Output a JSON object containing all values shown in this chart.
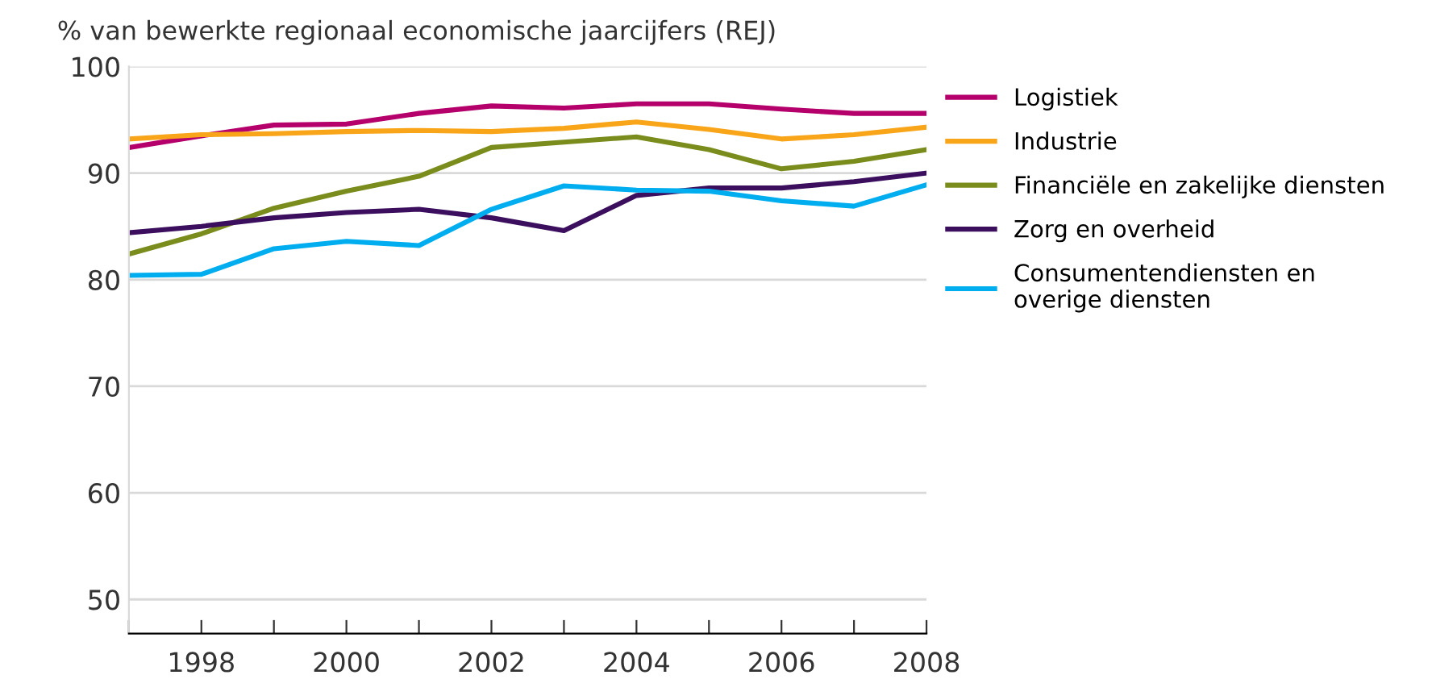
{
  "chart_data": {
    "type": "line",
    "title": "% van bewerkte regionaal economische jaarcijfers (REJ)",
    "x": [
      1997,
      1998,
      1999,
      2000,
      2001,
      2002,
      2003,
      2004,
      2005,
      2006,
      2007,
      2008
    ],
    "series": [
      {
        "name": "Logistiek",
        "color": "#b5006b",
        "values": [
          92.4,
          93.5,
          94.5,
          94.6,
          95.6,
          96.3,
          96.1,
          96.5,
          96.5,
          96.0,
          95.6,
          95.6
        ]
      },
      {
        "name": "Industrie",
        "color": "#f9a51a",
        "values": [
          93.2,
          93.6,
          93.7,
          93.9,
          94.0,
          93.9,
          94.2,
          94.8,
          94.1,
          93.2,
          93.6,
          94.3
        ]
      },
      {
        "name": "Financiële en zakelijke diensten",
        "color": "#7a8c1c",
        "values": [
          82.4,
          84.3,
          86.7,
          88.3,
          89.7,
          92.4,
          92.9,
          93.4,
          92.2,
          90.4,
          91.1,
          92.2
        ]
      },
      {
        "name": "Zorg en overheid",
        "color": "#3b0f5e",
        "values": [
          84.4,
          85.0,
          85.8,
          86.3,
          86.6,
          85.8,
          84.6,
          87.9,
          88.6,
          88.6,
          89.2,
          90.0
        ]
      },
      {
        "name": "Consumentendiensten en\noverige diensten",
        "color": "#00aeef",
        "values": [
          80.4,
          80.5,
          82.9,
          83.6,
          83.2,
          86.6,
          88.8,
          88.4,
          88.3,
          87.4,
          86.9,
          88.9
        ]
      }
    ],
    "xlim": [
      1997,
      2008
    ],
    "xticks": [
      {
        "value": 1997,
        "label": null
      },
      1998,
      {
        "value": 1999,
        "label": null
      },
      2000,
      {
        "value": 2001,
        "label": null
      },
      2002,
      {
        "value": 2003,
        "label": null
      },
      2004,
      {
        "value": 2005,
        "label": null
      },
      2006,
      {
        "value": 2007,
        "label": null
      },
      2008
    ],
    "ylim": [
      46.8,
      100
    ],
    "yticks": [
      50,
      60,
      70,
      80,
      90,
      100
    ],
    "grid": "y",
    "legend": "right",
    "marker": "none",
    "line_style": "solid"
  }
}
